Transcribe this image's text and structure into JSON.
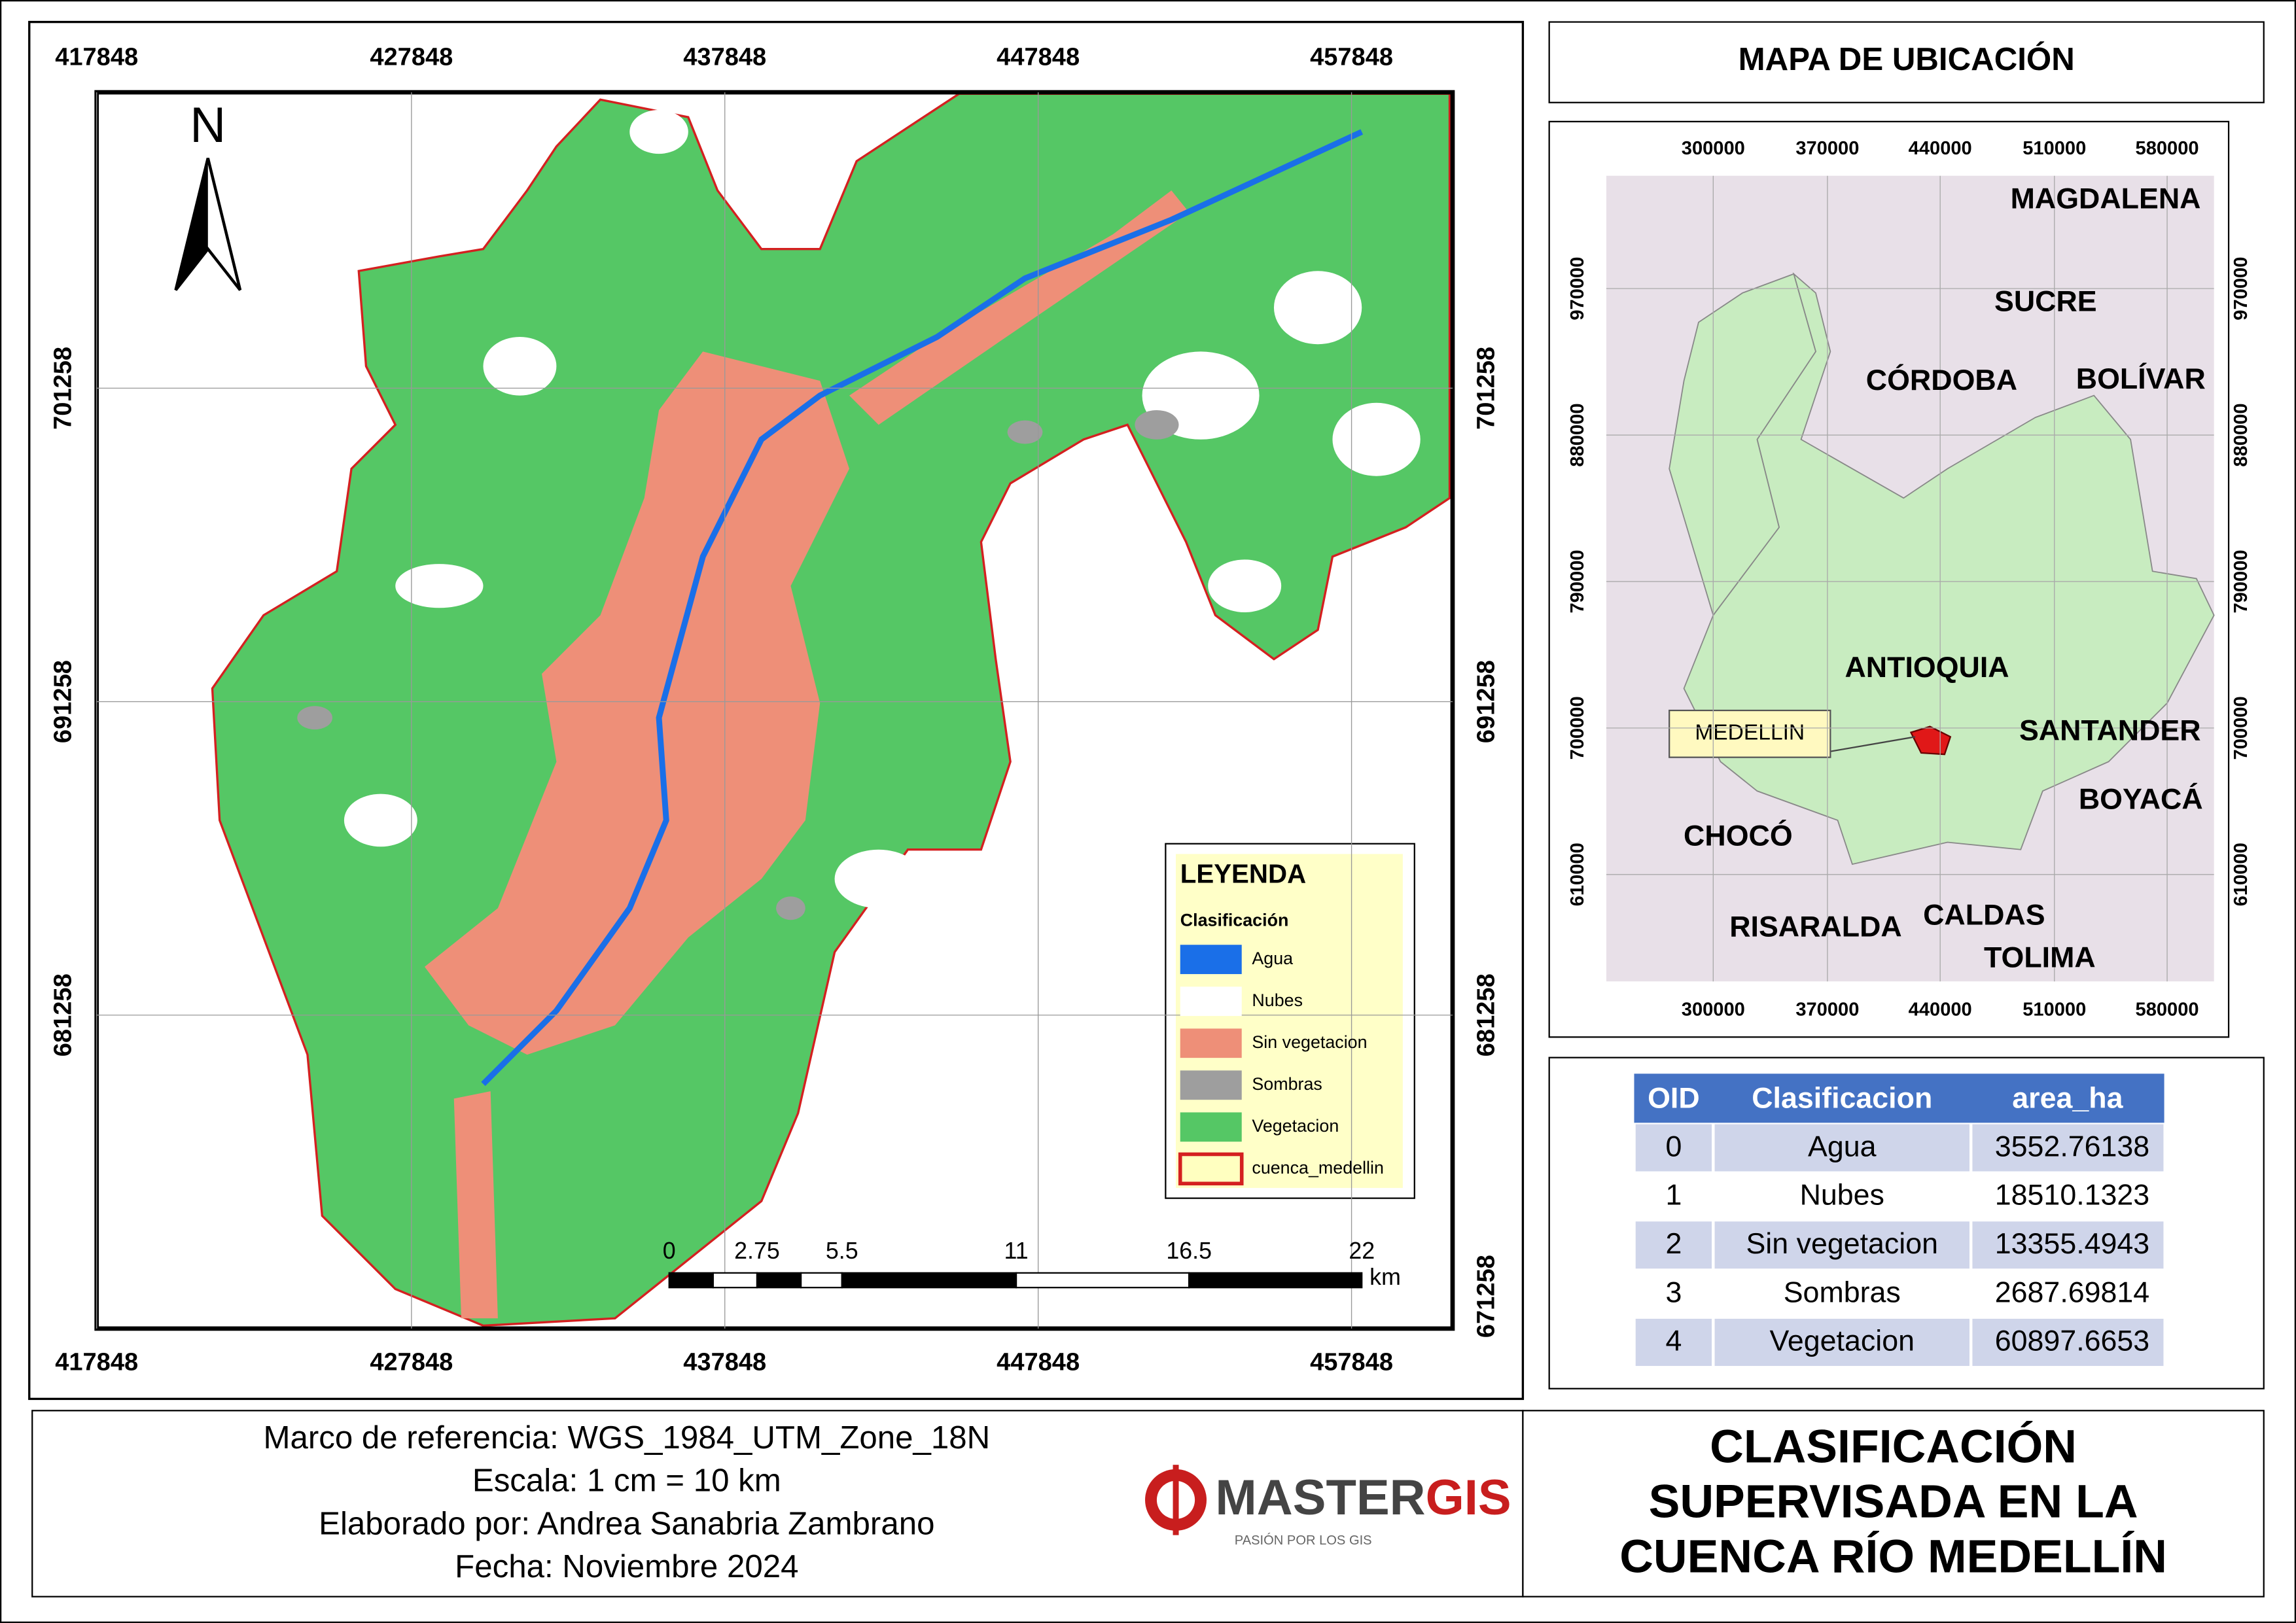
{
  "main_map": {
    "x_ticks": [
      "417848",
      "427848",
      "437848",
      "447848",
      "457848"
    ],
    "y_ticks": [
      "701258",
      "691258",
      "681258",
      "671258"
    ],
    "north": "N",
    "scale_bar": {
      "labels": [
        "0",
        "2.75",
        "5.5",
        "11",
        "16.5",
        "22"
      ],
      "unit": "km"
    }
  },
  "legend": {
    "title": "LEYENDA",
    "subtitle": "Clasificación",
    "items": [
      {
        "label": "Agua",
        "color": "#1a6fe8"
      },
      {
        "label": "Nubes",
        "color": "#ffffff"
      },
      {
        "label": "Sin vegetacion",
        "color": "#ee8f78"
      },
      {
        "label": "Sombras",
        "color": "#9e9e9e"
      },
      {
        "label": "Vegetacion",
        "color": "#55c765"
      },
      {
        "label": "cuenca_medellin",
        "color": "#ffffc0"
      }
    ]
  },
  "location_map": {
    "title": "MAPA DE UBICACIÓN",
    "x_ticks": [
      "300000",
      "370000",
      "440000",
      "510000",
      "580000"
    ],
    "y_ticks": [
      "970000",
      "880000",
      "790000",
      "700000",
      "610000"
    ],
    "regions": [
      "MAGDALENA",
      "SUCRE",
      "CÓRDOBA",
      "BOLÍVAR",
      "ANTIOQUIA",
      "SANTANDER",
      "BOYACÁ",
      "CHOCÓ",
      "RISARALDA",
      "CALDAS",
      "TOLIMA"
    ],
    "callout": "MEDELLIN"
  },
  "table": {
    "columns": [
      "OID",
      "Clasificacion",
      "area_ha"
    ],
    "rows": [
      [
        "0",
        "Agua",
        "3552.76138"
      ],
      [
        "1",
        "Nubes",
        "18510.1323"
      ],
      [
        "2",
        "Sin vegetacion",
        "13355.4943"
      ],
      [
        "3",
        "Sombras",
        "2687.69814"
      ],
      [
        "4",
        "Vegetacion",
        "60897.6653"
      ]
    ]
  },
  "footer": {
    "info": [
      "Marco de referencia: WGS_1984_UTM_Zone_18N",
      "Escala: 1 cm = 10 km",
      "Elaborado por: Andrea Sanabria Zambrano",
      "Fecha: Noviembre 2024"
    ],
    "logo": {
      "name": "MASTER",
      "accent": "GIS",
      "tagline": "PASIÓN POR LOS GIS"
    },
    "title": [
      "CLASIFICACIÓN",
      "SUPERVISADA  EN LA",
      "CUENCA RÍO MEDELLÍN"
    ]
  }
}
